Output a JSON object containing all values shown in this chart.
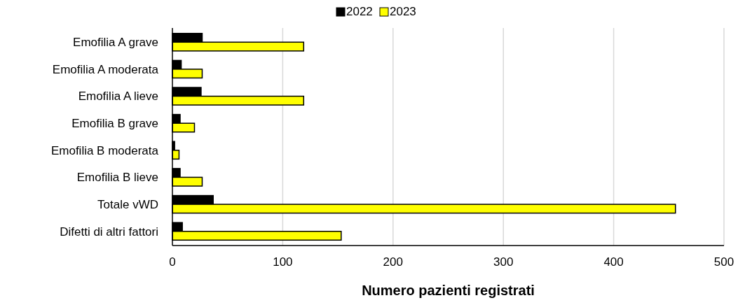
{
  "chart_data": {
    "type": "bar",
    "orientation": "horizontal",
    "xlabel": "Numero pazienti registrati",
    "categories": [
      "Emofilia A grave",
      "Emofilia A moderata",
      "Emofilia A lieve",
      "Emofilia B grave",
      "Emofilia B moderata",
      "Emofilia B lieve",
      "Totale vWD",
      "Difetti di altri fattori"
    ],
    "series": [
      {
        "name": "2022",
        "color": "#000000",
        "values": [
          27,
          8,
          26,
          7,
          2,
          7,
          37,
          9
        ]
      },
      {
        "name": "2023",
        "color": "#ffff00",
        "values": [
          119,
          27,
          119,
          20,
          6,
          27,
          456,
          153
        ]
      }
    ],
    "xlim": [
      0,
      500
    ],
    "xticks": [
      0,
      100,
      200,
      300,
      400,
      500
    ],
    "grid": "x",
    "legend": "top"
  }
}
